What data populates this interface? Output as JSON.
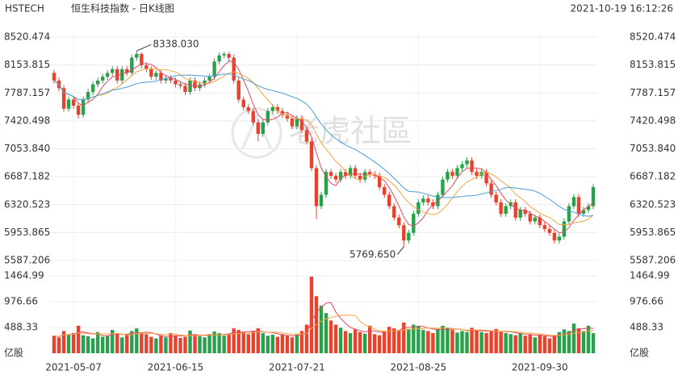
{
  "header": {
    "symbol": "HSTECH",
    "name": "恒生科技指数 - 日K线图",
    "timestamp": "2021-10-19 16:12:26"
  },
  "watermark": "老虎社區",
  "chart_data": {
    "type": "candlestick",
    "categories": [
      null,
      null,
      null,
      null,
      "2021-05-07",
      null,
      null,
      null,
      null,
      null,
      null,
      null,
      null,
      null,
      null,
      null,
      null,
      null,
      null,
      null,
      null,
      null,
      null,
      null,
      null,
      "2021-06-15",
      null,
      null,
      null,
      null,
      null,
      null,
      null,
      null,
      null,
      null,
      null,
      null,
      null,
      null,
      null,
      null,
      null,
      null,
      null,
      null,
      null,
      null,
      null,
      null,
      "2021-07-21",
      null,
      null,
      null,
      null,
      null,
      null,
      null,
      null,
      null,
      null,
      null,
      null,
      null,
      null,
      null,
      null,
      null,
      null,
      null,
      null,
      null,
      null,
      null,
      null,
      "2021-08-25",
      null,
      null,
      null,
      null,
      null,
      null,
      null,
      null,
      null,
      null,
      null,
      null,
      null,
      null,
      null,
      null,
      null,
      null,
      null,
      null,
      null,
      null,
      null,
      null,
      "2021-09-30",
      null,
      null,
      null,
      null,
      null,
      null,
      null,
      null,
      null,
      null,
      null
    ],
    "open": [
      8050,
      7950,
      7850,
      7580,
      7700,
      7620,
      7500,
      7700,
      7800,
      7900,
      7950,
      8000,
      8050,
      8100,
      7950,
      8100,
      8050,
      8250,
      8300,
      8150,
      8100,
      8000,
      8050,
      7950,
      7980,
      7950,
      7900,
      7880,
      7800,
      7950,
      7850,
      7900,
      7950,
      8000,
      8200,
      8280,
      8300,
      8250,
      7950,
      7700,
      7600,
      7550,
      7400,
      7250,
      7400,
      7550,
      7600,
      7550,
      7500,
      7450,
      7350,
      7450,
      7300,
      7150,
      6800,
      6300,
      6450,
      6750,
      6700,
      6650,
      6750,
      6700,
      6800,
      6700,
      6650,
      6750,
      6720,
      6700,
      6550,
      6450,
      6300,
      6150,
      6050,
      5850,
      5950,
      6200,
      6350,
      6400,
      6350,
      6300,
      6450,
      6650,
      6750,
      6700,
      6800,
      6850,
      6900,
      6750,
      6700,
      6750,
      6600,
      6450,
      6350,
      6200,
      6300,
      6350,
      6150,
      6250,
      6200,
      6100,
      6150,
      6050,
      6000,
      5950,
      5850,
      5900,
      6100,
      6300,
      6420,
      6200,
      6250,
      6300
    ],
    "high": [
      8090,
      7990,
      7890,
      7740,
      7740,
      7660,
      7740,
      7840,
      7940,
      7990,
      8040,
      8090,
      8140,
      8140,
      8140,
      8140,
      8290,
      8338.03,
      8320,
      8190,
      8140,
      8090,
      8090,
      8020,
      8020,
      7990,
      7940,
      7920,
      7990,
      7990,
      7940,
      7990,
      8040,
      8240,
      8320,
      8330,
      8330,
      8290,
      7990,
      7740,
      7640,
      7590,
      7440,
      7440,
      7590,
      7640,
      7640,
      7590,
      7540,
      7490,
      7490,
      7490,
      7340,
      7190,
      6840,
      6490,
      6790,
      6790,
      6740,
      6790,
      6790,
      6840,
      6840,
      6740,
      6790,
      6790,
      6760,
      6740,
      6590,
      6490,
      6340,
      6190,
      6090,
      5990,
      6240,
      6390,
      6440,
      6440,
      6390,
      6490,
      6690,
      6790,
      6790,
      6840,
      6890,
      6940,
      6940,
      6790,
      6790,
      6790,
      6640,
      6490,
      6390,
      6340,
      6390,
      6390,
      6290,
      6290,
      6240,
      6190,
      6190,
      6090,
      6040,
      5990,
      5940,
      6140,
      6340,
      6460,
      6460,
      6290,
      6340,
      6590
    ],
    "low": [
      7910,
      7810,
      7540,
      7540,
      7580,
      7450,
      7460,
      7660,
      7760,
      7860,
      7910,
      7960,
      8010,
      7910,
      7910,
      8010,
      8010,
      8210,
      8110,
      8060,
      7960,
      7960,
      7910,
      7910,
      7910,
      7860,
      7840,
      7760,
      7760,
      7810,
      7810,
      7860,
      7910,
      7960,
      8160,
      8240,
      8210,
      7910,
      7660,
      7560,
      7510,
      7360,
      7150,
      7210,
      7360,
      7510,
      7510,
      7460,
      7410,
      7310,
      7310,
      7260,
      7110,
      6760,
      6130,
      6260,
      6410,
      6660,
      6610,
      6610,
      6660,
      6660,
      6660,
      6610,
      6610,
      6680,
      6660,
      6510,
      6410,
      6260,
      6110,
      6010,
      5769.65,
      5810,
      5910,
      6160,
      6310,
      6310,
      6260,
      6260,
      6410,
      6610,
      6660,
      6660,
      6760,
      6810,
      6710,
      6660,
      6660,
      6560,
      6410,
      6310,
      6160,
      6160,
      6260,
      6110,
      6110,
      6160,
      6060,
      6060,
      6010,
      5960,
      5910,
      5810,
      5810,
      5860,
      6060,
      6260,
      6160,
      6160,
      6210,
      6260
    ],
    "close": [
      7950,
      7850,
      7580,
      7700,
      7620,
      7500,
      7700,
      7800,
      7900,
      7950,
      8000,
      8050,
      8100,
      7950,
      8100,
      8050,
      8250,
      8300,
      8150,
      8100,
      8000,
      8050,
      7950,
      7980,
      7950,
      7900,
      7880,
      7800,
      7950,
      7850,
      7900,
      7950,
      8000,
      8200,
      8280,
      8300,
      8250,
      7950,
      7700,
      7600,
      7550,
      7400,
      7250,
      7400,
      7550,
      7600,
      7550,
      7500,
      7450,
      7350,
      7450,
      7300,
      7150,
      6800,
      6300,
      6450,
      6750,
      6700,
      6650,
      6750,
      6700,
      6800,
      6700,
      6650,
      6750,
      6720,
      6700,
      6550,
      6450,
      6300,
      6150,
      6050,
      5850,
      5950,
      6200,
      6350,
      6400,
      6350,
      6300,
      6450,
      6650,
      6750,
      6700,
      6800,
      6850,
      6900,
      6750,
      6700,
      6750,
      6600,
      6450,
      6350,
      6200,
      6300,
      6350,
      6150,
      6250,
      6200,
      6100,
      6150,
      6050,
      6000,
      5950,
      5850,
      5900,
      6100,
      6300,
      6420,
      6200,
      6250,
      6300,
      6550
    ],
    "up_color": "#27a24a",
    "down_color": "#e8412c",
    "ylim": [
      5587.206,
      8520.474
    ],
    "yticks": [
      5587.206,
      5953.865,
      6320.523,
      6687.182,
      {
        "value": 7053.84,
        "label": "7053.840"
      },
      7420.498,
      7787.157,
      8153.815,
      8520.474
    ],
    "grid": true,
    "moving_averages": [
      {
        "period": 5,
        "color": "#e8485f"
      },
      {
        "period": 10,
        "color": "#f5a442"
      },
      {
        "period": 20,
        "color": "#4a9fd8"
      }
    ],
    "annotations": [
      {
        "text": "8338.030",
        "value": 8338.03
      },
      {
        "text": "5769.650",
        "value": 5769.65
      }
    ],
    "volume": {
      "values": [
        330,
        300,
        420,
        360,
        380,
        520,
        340,
        320,
        280,
        400,
        310,
        330,
        440,
        380,
        300,
        350,
        420,
        470,
        390,
        360,
        310,
        280,
        330,
        300,
        380,
        340,
        290,
        310,
        430,
        360,
        320,
        300,
        350,
        410,
        380,
        330,
        360,
        470,
        440,
        400,
        360,
        420,
        470,
        380,
        330,
        350,
        310,
        360,
        330,
        300,
        350,
        420,
        540,
        1450,
        1080,
        900,
        760,
        620,
        540,
        480,
        420,
        380,
        450,
        400,
        370,
        520,
        360,
        340,
        420,
        500,
        470,
        430,
        580,
        460,
        540,
        520,
        440,
        420,
        380,
        460,
        520,
        480,
        440,
        390,
        420,
        400,
        480,
        430,
        400,
        380,
        420,
        460,
        400,
        380,
        360,
        340,
        380,
        330,
        360,
        300,
        350,
        320,
        280,
        340,
        400,
        450,
        420,
        560,
        470,
        420,
        520,
        380
      ],
      "ylim": [
        0,
        1464.99
      ],
      "yticks": [
        {
          "value": 0,
          "label": "亿股"
        },
        488.33,
        976.66,
        1464.99
      ],
      "moving_averages": [
        {
          "period": 5,
          "color": "#e8485f"
        },
        {
          "period": 10,
          "color": "#f5a442"
        }
      ]
    }
  }
}
